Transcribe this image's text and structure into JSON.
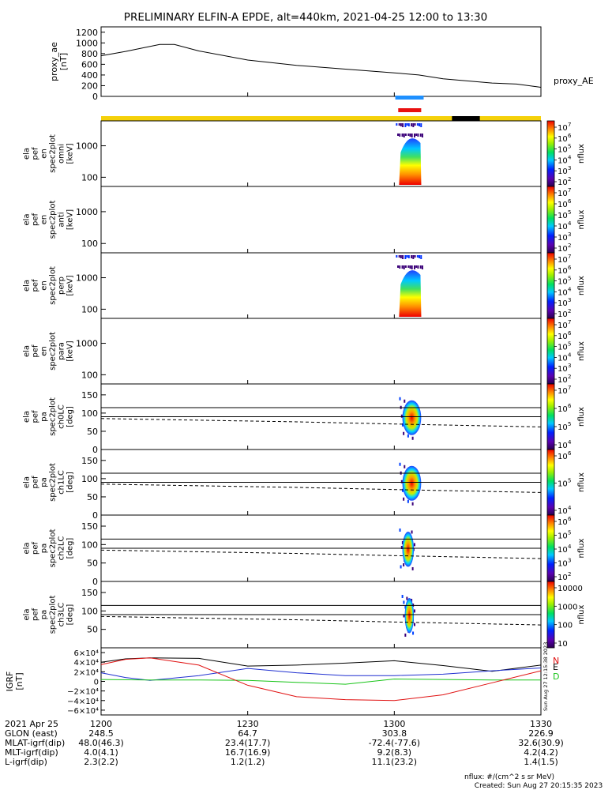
{
  "title": "PRELIMINARY ELFIN-A EPDE, alt=440km, 2021-04-25 12:00 to 13:30",
  "colors": {
    "bar_yellow": "#f5d10a",
    "bar_black": "#000000",
    "marker_blue": "#1e90ff",
    "marker_red": "#e81010",
    "bx": "#000000",
    "by": "#1f2fd0",
    "bz": "#e01010",
    "bmag": "#18c418"
  },
  "chart_data": [
    {
      "type": "line",
      "panel": "proxy_ae",
      "ylabel": [
        "proxy_ae",
        "[nT]"
      ],
      "legend": "proxy_AE",
      "ylim": [
        0,
        1300
      ],
      "yticks": [
        "1200",
        "1000",
        "800",
        "600",
        "400",
        "200",
        "0"
      ],
      "x_minutes": [
        0,
        5,
        12,
        15,
        20,
        30,
        40,
        50,
        60,
        65,
        70,
        80,
        85,
        90
      ],
      "values": [
        760,
        840,
        970,
        970,
        850,
        680,
        580,
        510,
        440,
        400,
        330,
        250,
        230,
        170
      ]
    },
    {
      "type": "heatmap",
      "panel": "omni",
      "ylabel": [
        "ela",
        "pef",
        "en",
        "spec2plot",
        "omni",
        "[keV]"
      ],
      "yticks": [
        "1000",
        "100"
      ],
      "colorbar": {
        "label": "nflux",
        "ticks": [
          "10^7",
          "10^6",
          "10^5",
          "10^4",
          "10^3",
          "10^2"
        ]
      },
      "active_minutes": [
        60.0,
        66.0
      ]
    },
    {
      "type": "heatmap",
      "panel": "anti",
      "ylabel": [
        "ela",
        "pef",
        "en",
        "spec2plot",
        "anti",
        "[keV]"
      ],
      "yticks": [
        "1000",
        "100"
      ],
      "colorbar": {
        "label": "nflux",
        "ticks": [
          "10^7",
          "10^6",
          "10^5",
          "10^4",
          "10^3",
          "10^2"
        ]
      },
      "active_minutes": []
    },
    {
      "type": "heatmap",
      "panel": "perp",
      "ylabel": [
        "ela",
        "pef",
        "en",
        "spec2plot",
        "perp",
        "[keV]"
      ],
      "yticks": [
        "1000",
        "100"
      ],
      "colorbar": {
        "label": "nflux",
        "ticks": [
          "10^7",
          "10^6",
          "10^5",
          "10^4",
          "10^3",
          "10^2"
        ]
      },
      "active_minutes": [
        60.0,
        66.0
      ]
    },
    {
      "type": "heatmap",
      "panel": "para",
      "ylabel": [
        "ela",
        "pef",
        "en",
        "spec2plot",
        "para",
        "[keV]"
      ],
      "yticks": [
        "1000",
        "100"
      ],
      "colorbar": {
        "label": "nflux",
        "ticks": [
          "10^7",
          "10^6",
          "10^5",
          "10^4",
          "10^3",
          "10^2"
        ]
      },
      "active_minutes": []
    },
    {
      "type": "heatmap",
      "panel": "ch0LC",
      "ylabel": [
        "ela",
        "pef",
        "pa",
        "spec2plot",
        "ch0LC",
        "[deg]"
      ],
      "yticks": [
        "150",
        "100",
        "50",
        "0"
      ],
      "ylim": [
        0,
        180
      ],
      "colorbar": {
        "label": "nflux",
        "ticks": [
          "10^7",
          "10^6",
          "10^5",
          "10^4"
        ]
      },
      "lines_deg": [
        115,
        90
      ],
      "active_minutes": [
        61.0,
        65.5
      ]
    },
    {
      "type": "heatmap",
      "panel": "ch1LC",
      "ylabel": [
        "ela",
        "pef",
        "pa",
        "spec2plot",
        "ch1LC",
        "[deg]"
      ],
      "yticks": [
        "150",
        "100",
        "50",
        "0"
      ],
      "ylim": [
        0,
        180
      ],
      "colorbar": {
        "label": "nflux",
        "ticks": [
          "10^6",
          "10^5",
          "10^4"
        ]
      },
      "lines_deg": [
        115,
        90
      ],
      "active_minutes": [
        61.0,
        65.5
      ]
    },
    {
      "type": "heatmap",
      "panel": "ch2LC",
      "ylabel": [
        "ela",
        "pef",
        "pa",
        "spec2plot",
        "ch2LC",
        "[deg]"
      ],
      "yticks": [
        "150",
        "100",
        "50",
        "0"
      ],
      "ylim": [
        0,
        180
      ],
      "colorbar": {
        "label": "nflux",
        "ticks": [
          "10^6",
          "10^5",
          "10^4",
          "10^3",
          "10^2"
        ]
      },
      "lines_deg": [
        115,
        90
      ],
      "active_minutes": [
        61.0,
        64.0
      ]
    },
    {
      "type": "heatmap",
      "panel": "ch3LC",
      "ylabel": [
        "ela",
        "pef",
        "pa",
        "spec2plot",
        "ch3LC",
        "[deg]"
      ],
      "yticks": [
        "150",
        "100",
        "50"
      ],
      "ylim": [
        0,
        180
      ],
      "colorbar": {
        "label": "nflux",
        "ticks": [
          "10000",
          "1000",
          "100",
          "10"
        ]
      },
      "lines_deg": [
        115,
        90
      ],
      "active_minutes": [
        61.5,
        64.0
      ]
    },
    {
      "type": "line",
      "panel": "IGRF",
      "ylabel": [
        "IGRF",
        "[nT]"
      ],
      "legend": [
        "N",
        "E",
        "D"
      ],
      "ylim": [
        -70000,
        70000
      ],
      "yticks": [
        "6×10⁴",
        "4×10⁴",
        "2×10⁴",
        "0",
        "−2×10⁴",
        "−4×10⁴",
        "−6×10⁴"
      ],
      "series": [
        {
          "key": "black",
          "x_minutes": [
            0,
            5,
            10,
            20,
            30,
            40,
            50,
            60,
            70,
            80,
            90
          ],
          "values": [
            40000,
            47000,
            49000,
            48000,
            32000,
            34000,
            38000,
            43000,
            33000,
            21000,
            34000
          ]
        },
        {
          "key": "blue",
          "x_minutes": [
            0,
            5,
            10,
            20,
            30,
            40,
            50,
            60,
            70,
            80,
            90
          ],
          "values": [
            18000,
            8000,
            2000,
            12000,
            27000,
            18000,
            12000,
            12000,
            15000,
            22000,
            28000
          ]
        },
        {
          "key": "green",
          "x_minutes": [
            0,
            10,
            20,
            30,
            40,
            50,
            60,
            70,
            80,
            90
          ],
          "values": [
            4000,
            3000,
            3000,
            2000,
            -2000,
            -6000,
            5000,
            4000,
            3000,
            3000
          ]
        },
        {
          "key": "red",
          "x_minutes": [
            0,
            5,
            10,
            20,
            30,
            40,
            50,
            60,
            70,
            80,
            90
          ],
          "values": [
            35000,
            46000,
            49000,
            34000,
            -8000,
            -32000,
            -38000,
            -40000,
            -28000,
            -3000,
            22000
          ]
        }
      ]
    }
  ],
  "xaxis": {
    "row_labels": [
      "2021 Apr 25",
      "GLON (east)",
      "MLAT-igrf(dip)",
      "MLT-igrf(dip)",
      "L-igrf(dip)"
    ],
    "ticks": [
      {
        "minute": 0,
        "values": [
          "1200",
          "248.5",
          "48.0(46.3)",
          "4.0(4.1)",
          "2.3(2.2)"
        ]
      },
      {
        "minute": 30,
        "values": [
          "1230",
          "64.7",
          "23.4(17.7)",
          "16.7(16.9)",
          "1.2(1.2)"
        ]
      },
      {
        "minute": 60,
        "values": [
          "1300",
          "303.8",
          "-72.4(-77.6)",
          "9.2(8.3)",
          "11.1(23.2)"
        ]
      },
      {
        "minute": 90,
        "values": [
          "1330",
          "226.9",
          "32.6(30.9)",
          "4.2(4.2)",
          "1.4(1.5)"
        ]
      }
    ]
  },
  "footer": {
    "units": "nflux: #/(cm^2 s sr MeV)",
    "created": "Created: Sun Aug 27 20:15:35 2023",
    "sidebar": "Sun Aug 27 12:15:38 2023"
  }
}
